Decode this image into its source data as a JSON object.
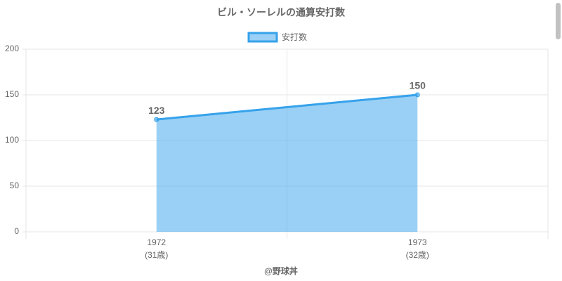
{
  "chart_data": {
    "type": "area",
    "title": "ビル・ソーレルの通算安打数",
    "categories": [
      "1972",
      "1973"
    ],
    "sub_labels": [
      "(31歳)",
      "(32歳)"
    ],
    "x_label": "@野球丼",
    "series": [
      {
        "name": "安打数",
        "color": "#36a2eb",
        "values": [
          123,
          150
        ]
      }
    ],
    "ylim": [
      0,
      200
    ],
    "yticks": [
      0,
      50,
      100,
      150,
      200
    ],
    "grid": true,
    "legend": "top"
  }
}
